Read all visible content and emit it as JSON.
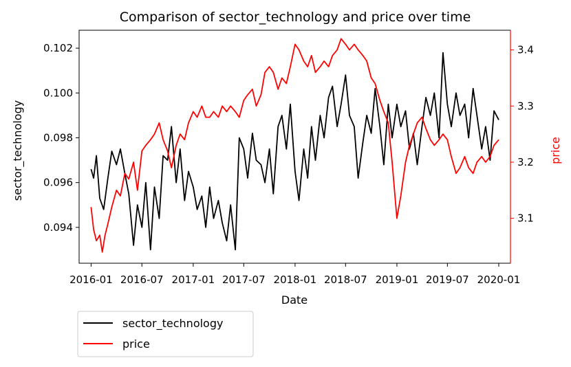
{
  "chart_data": {
    "type": "line",
    "title": "Comparison of sector_technology and price over time",
    "xlabel": "Date",
    "ylabel": "sector_technology",
    "y2label": "price",
    "x_ticks": [
      "2016-01",
      "2016-07",
      "2017-01",
      "2017-07",
      "2018-01",
      "2018-07",
      "2019-01",
      "2019-07",
      "2020-01"
    ],
    "y_ticks": [
      "0.094",
      "0.096",
      "0.098",
      "0.100",
      "0.102"
    ],
    "y2_ticks": [
      "3.1",
      "3.2",
      "3.3",
      "3.4"
    ],
    "xlim": [
      "2015-11-19",
      "2020-02-12"
    ],
    "ylim": [
      0.0924,
      0.1028
    ],
    "y2lim": [
      3.02,
      3.435
    ],
    "grid": false,
    "legend_position": "below-left",
    "series": [
      {
        "name": "sector_technology",
        "axis": "left",
        "color": "#000000",
        "points": [
          [
            "2016-01-01",
            0.0966
          ],
          [
            "2016-01-10",
            0.0962
          ],
          [
            "2016-01-20",
            0.0972
          ],
          [
            "2016-02-01",
            0.0953
          ],
          [
            "2016-02-15",
            0.0948
          ],
          [
            "2016-03-01",
            0.0962
          ],
          [
            "2016-03-15",
            0.0974
          ],
          [
            "2016-04-01",
            0.0968
          ],
          [
            "2016-04-15",
            0.0975
          ],
          [
            "2016-05-01",
            0.0964
          ],
          [
            "2016-05-15",
            0.0955
          ],
          [
            "2016-06-01",
            0.0932
          ],
          [
            "2016-06-15",
            0.095
          ],
          [
            "2016-07-01",
            0.094
          ],
          [
            "2016-07-15",
            0.096
          ],
          [
            "2016-08-01",
            0.093
          ],
          [
            "2016-08-15",
            0.0958
          ],
          [
            "2016-09-01",
            0.0944
          ],
          [
            "2016-09-15",
            0.0972
          ],
          [
            "2016-10-01",
            0.097
          ],
          [
            "2016-10-15",
            0.0985
          ],
          [
            "2016-11-01",
            0.096
          ],
          [
            "2016-11-15",
            0.0975
          ],
          [
            "2016-12-01",
            0.0952
          ],
          [
            "2016-12-15",
            0.0965
          ],
          [
            "2017-01-01",
            0.0958
          ],
          [
            "2017-01-15",
            0.0948
          ],
          [
            "2017-02-01",
            0.0954
          ],
          [
            "2017-02-15",
            0.094
          ],
          [
            "2017-03-01",
            0.0958
          ],
          [
            "2017-03-15",
            0.0944
          ],
          [
            "2017-04-01",
            0.0952
          ],
          [
            "2017-04-15",
            0.0942
          ],
          [
            "2017-05-01",
            0.0934
          ],
          [
            "2017-05-15",
            0.095
          ],
          [
            "2017-06-01",
            0.093
          ],
          [
            "2017-06-15",
            0.098
          ],
          [
            "2017-07-01",
            0.0975
          ],
          [
            "2017-07-15",
            0.0962
          ],
          [
            "2017-08-01",
            0.0982
          ],
          [
            "2017-08-15",
            0.097
          ],
          [
            "2017-09-01",
            0.0968
          ],
          [
            "2017-09-15",
            0.096
          ],
          [
            "2017-10-01",
            0.0975
          ],
          [
            "2017-10-15",
            0.0955
          ],
          [
            "2017-11-01",
            0.0985
          ],
          [
            "2017-11-15",
            0.099
          ],
          [
            "2017-12-01",
            0.0975
          ],
          [
            "2017-12-15",
            0.0995
          ],
          [
            "2018-01-01",
            0.0965
          ],
          [
            "2018-01-15",
            0.0952
          ],
          [
            "2018-02-01",
            0.0975
          ],
          [
            "2018-02-15",
            0.0962
          ],
          [
            "2018-03-01",
            0.0985
          ],
          [
            "2018-03-15",
            0.097
          ],
          [
            "2018-04-01",
            0.099
          ],
          [
            "2018-04-15",
            0.098
          ],
          [
            "2018-05-01",
            0.0998
          ],
          [
            "2018-05-15",
            0.1003
          ],
          [
            "2018-06-01",
            0.0985
          ],
          [
            "2018-06-15",
            0.0995
          ],
          [
            "2018-07-01",
            0.1008
          ],
          [
            "2018-07-15",
            0.099
          ],
          [
            "2018-08-01",
            0.0985
          ],
          [
            "2018-08-15",
            0.0962
          ],
          [
            "2018-09-01",
            0.0978
          ],
          [
            "2018-09-15",
            0.099
          ],
          [
            "2018-10-01",
            0.0982
          ],
          [
            "2018-10-15",
            0.1002
          ],
          [
            "2018-11-01",
            0.0985
          ],
          [
            "2018-11-15",
            0.0968
          ],
          [
            "2018-12-01",
            0.0995
          ],
          [
            "2018-12-15",
            0.098
          ],
          [
            "2019-01-01",
            0.0995
          ],
          [
            "2019-01-15",
            0.0985
          ],
          [
            "2019-02-01",
            0.0992
          ],
          [
            "2019-02-15",
            0.0975
          ],
          [
            "2019-03-01",
            0.0982
          ],
          [
            "2019-03-15",
            0.0968
          ],
          [
            "2019-04-01",
            0.0985
          ],
          [
            "2019-04-15",
            0.0998
          ],
          [
            "2019-05-01",
            0.099
          ],
          [
            "2019-05-15",
            0.1
          ],
          [
            "2019-06-01",
            0.098
          ],
          [
            "2019-06-15",
            0.1018
          ],
          [
            "2019-07-01",
            0.0995
          ],
          [
            "2019-07-15",
            0.0985
          ],
          [
            "2019-08-01",
            0.1
          ],
          [
            "2019-08-15",
            0.099
          ],
          [
            "2019-09-01",
            0.0995
          ],
          [
            "2019-09-15",
            0.098
          ],
          [
            "2019-10-01",
            0.1002
          ],
          [
            "2019-10-15",
            0.099
          ],
          [
            "2019-11-01",
            0.0975
          ],
          [
            "2019-11-15",
            0.0985
          ],
          [
            "2019-12-01",
            0.097
          ],
          [
            "2019-12-15",
            0.0992
          ],
          [
            "2020-01-01",
            0.0988
          ]
        ]
      },
      {
        "name": "price",
        "axis": "right",
        "color": "#ff0000",
        "points": [
          [
            "2016-01-01",
            3.12
          ],
          [
            "2016-01-10",
            3.08
          ],
          [
            "2016-01-20",
            3.06
          ],
          [
            "2016-02-01",
            3.07
          ],
          [
            "2016-02-10",
            3.04
          ],
          [
            "2016-02-20",
            3.07
          ],
          [
            "2016-03-01",
            3.09
          ],
          [
            "2016-03-15",
            3.12
          ],
          [
            "2016-04-01",
            3.15
          ],
          [
            "2016-04-15",
            3.14
          ],
          [
            "2016-05-01",
            3.18
          ],
          [
            "2016-05-15",
            3.17
          ],
          [
            "2016-06-01",
            3.2
          ],
          [
            "2016-06-15",
            3.15
          ],
          [
            "2016-07-01",
            3.22
          ],
          [
            "2016-07-15",
            3.23
          ],
          [
            "2016-08-01",
            3.24
          ],
          [
            "2016-08-15",
            3.25
          ],
          [
            "2016-09-01",
            3.27
          ],
          [
            "2016-09-15",
            3.24
          ],
          [
            "2016-10-01",
            3.22
          ],
          [
            "2016-10-15",
            3.19
          ],
          [
            "2016-11-01",
            3.23
          ],
          [
            "2016-11-15",
            3.25
          ],
          [
            "2016-12-01",
            3.24
          ],
          [
            "2016-12-15",
            3.27
          ],
          [
            "2017-01-01",
            3.29
          ],
          [
            "2017-01-15",
            3.28
          ],
          [
            "2017-02-01",
            3.3
          ],
          [
            "2017-02-15",
            3.28
          ],
          [
            "2017-03-01",
            3.28
          ],
          [
            "2017-03-15",
            3.29
          ],
          [
            "2017-04-01",
            3.28
          ],
          [
            "2017-04-15",
            3.3
          ],
          [
            "2017-05-01",
            3.29
          ],
          [
            "2017-05-15",
            3.3
          ],
          [
            "2017-06-01",
            3.29
          ],
          [
            "2017-06-15",
            3.28
          ],
          [
            "2017-07-01",
            3.31
          ],
          [
            "2017-07-15",
            3.32
          ],
          [
            "2017-08-01",
            3.33
          ],
          [
            "2017-08-15",
            3.3
          ],
          [
            "2017-09-01",
            3.32
          ],
          [
            "2017-09-15",
            3.36
          ],
          [
            "2017-10-01",
            3.37
          ],
          [
            "2017-10-15",
            3.36
          ],
          [
            "2017-11-01",
            3.33
          ],
          [
            "2017-11-15",
            3.35
          ],
          [
            "2017-12-01",
            3.34
          ],
          [
            "2017-12-15",
            3.37
          ],
          [
            "2018-01-01",
            3.41
          ],
          [
            "2018-01-15",
            3.4
          ],
          [
            "2018-02-01",
            3.38
          ],
          [
            "2018-02-15",
            3.37
          ],
          [
            "2018-03-01",
            3.39
          ],
          [
            "2018-03-15",
            3.36
          ],
          [
            "2018-04-01",
            3.37
          ],
          [
            "2018-04-15",
            3.38
          ],
          [
            "2018-05-01",
            3.37
          ],
          [
            "2018-05-15",
            3.39
          ],
          [
            "2018-06-01",
            3.4
          ],
          [
            "2018-06-15",
            3.42
          ],
          [
            "2018-07-01",
            3.41
          ],
          [
            "2018-07-15",
            3.4
          ],
          [
            "2018-08-01",
            3.41
          ],
          [
            "2018-08-15",
            3.4
          ],
          [
            "2018-09-01",
            3.39
          ],
          [
            "2018-09-15",
            3.38
          ],
          [
            "2018-10-01",
            3.35
          ],
          [
            "2018-10-15",
            3.34
          ],
          [
            "2018-11-01",
            3.31
          ],
          [
            "2018-11-15",
            3.29
          ],
          [
            "2018-12-01",
            3.27
          ],
          [
            "2018-12-15",
            3.2
          ],
          [
            "2019-01-01",
            3.1
          ],
          [
            "2019-01-15",
            3.14
          ],
          [
            "2019-02-01",
            3.2
          ],
          [
            "2019-02-15",
            3.23
          ],
          [
            "2019-03-01",
            3.25
          ],
          [
            "2019-03-15",
            3.27
          ],
          [
            "2019-04-01",
            3.28
          ],
          [
            "2019-04-15",
            3.26
          ],
          [
            "2019-05-01",
            3.24
          ],
          [
            "2019-05-15",
            3.23
          ],
          [
            "2019-06-01",
            3.24
          ],
          [
            "2019-06-15",
            3.25
          ],
          [
            "2019-07-01",
            3.24
          ],
          [
            "2019-07-15",
            3.21
          ],
          [
            "2019-08-01",
            3.18
          ],
          [
            "2019-08-15",
            3.19
          ],
          [
            "2019-09-01",
            3.21
          ],
          [
            "2019-09-15",
            3.19
          ],
          [
            "2019-10-01",
            3.18
          ],
          [
            "2019-10-15",
            3.2
          ],
          [
            "2019-11-01",
            3.21
          ],
          [
            "2019-11-15",
            3.2
          ],
          [
            "2019-12-01",
            3.21
          ],
          [
            "2019-12-15",
            3.23
          ],
          [
            "2020-01-01",
            3.24
          ]
        ]
      }
    ]
  }
}
